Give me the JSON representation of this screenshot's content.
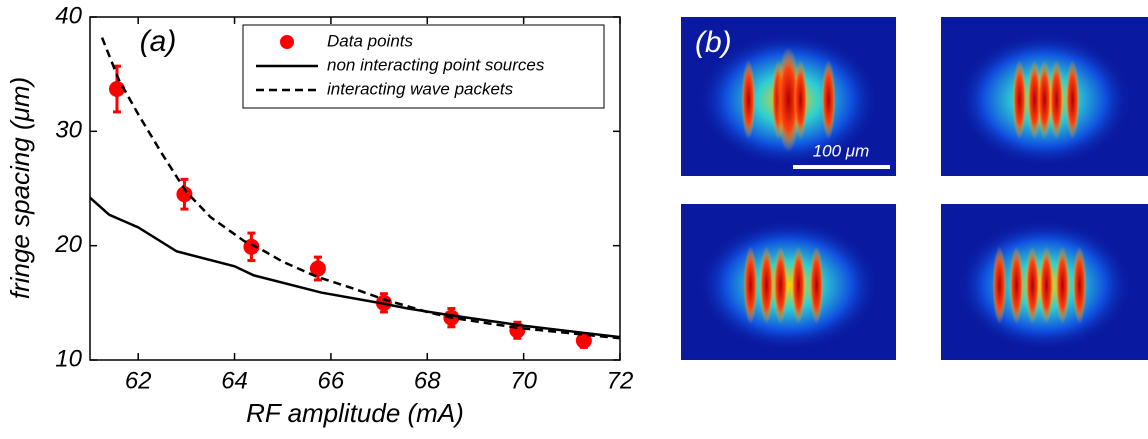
{
  "chart_data": {
    "type": "line",
    "annotation": "(a)",
    "x_label": "RF amplitude (mA)",
    "y_label": "fringe spacing (μm)",
    "xlim": [
      61,
      72
    ],
    "xticks": [
      62,
      64,
      66,
      68,
      70,
      72
    ],
    "ylim": [
      10,
      40
    ],
    "yticks": [
      10,
      20,
      30,
      40
    ],
    "legend": "upper right",
    "series": [
      {
        "name": "Data points",
        "type": "scatter",
        "color": "#ff0000",
        "x": [
          61.56,
          62.96,
          64.35,
          65.73,
          67.1,
          68.5,
          69.87,
          71.25
        ],
        "values": [
          33.7,
          24.5,
          19.9,
          18.0,
          15.0,
          13.7,
          12.6,
          11.7
        ],
        "errors": [
          2.0,
          1.3,
          1.2,
          1.0,
          0.8,
          0.8,
          0.7,
          0.6
        ]
      },
      {
        "name": "non interacting point sources",
        "type": "line",
        "color": "#000000",
        "dash": "solid",
        "x": [
          61,
          61.4,
          62,
          62.8,
          64,
          64.4,
          65.8,
          67,
          67.6,
          68.5,
          70,
          71.2,
          72
        ],
        "values": [
          24.2,
          22.7,
          21.6,
          19.5,
          18.2,
          17.4,
          15.9,
          15.0,
          14.5,
          13.9,
          13.0,
          12.4,
          12.0
        ]
      },
      {
        "name": "interacting wave packets",
        "type": "line",
        "color": "#000000",
        "dash": "dashed",
        "x": [
          61.25,
          61.6,
          62,
          62.5,
          63,
          63.5,
          64.2,
          64.5,
          65,
          65.7,
          66.5,
          67.1,
          68,
          68.5,
          69.9,
          72
        ],
        "values": [
          38.2,
          34.5,
          31.5,
          28.0,
          24.7,
          22.5,
          20.4,
          19.8,
          18.6,
          17.3,
          16.2,
          15.3,
          14.2,
          13.7,
          12.8,
          11.9
        ]
      }
    ]
  },
  "panel_b": {
    "label": "(b)",
    "scale_bar": "100 μm"
  }
}
